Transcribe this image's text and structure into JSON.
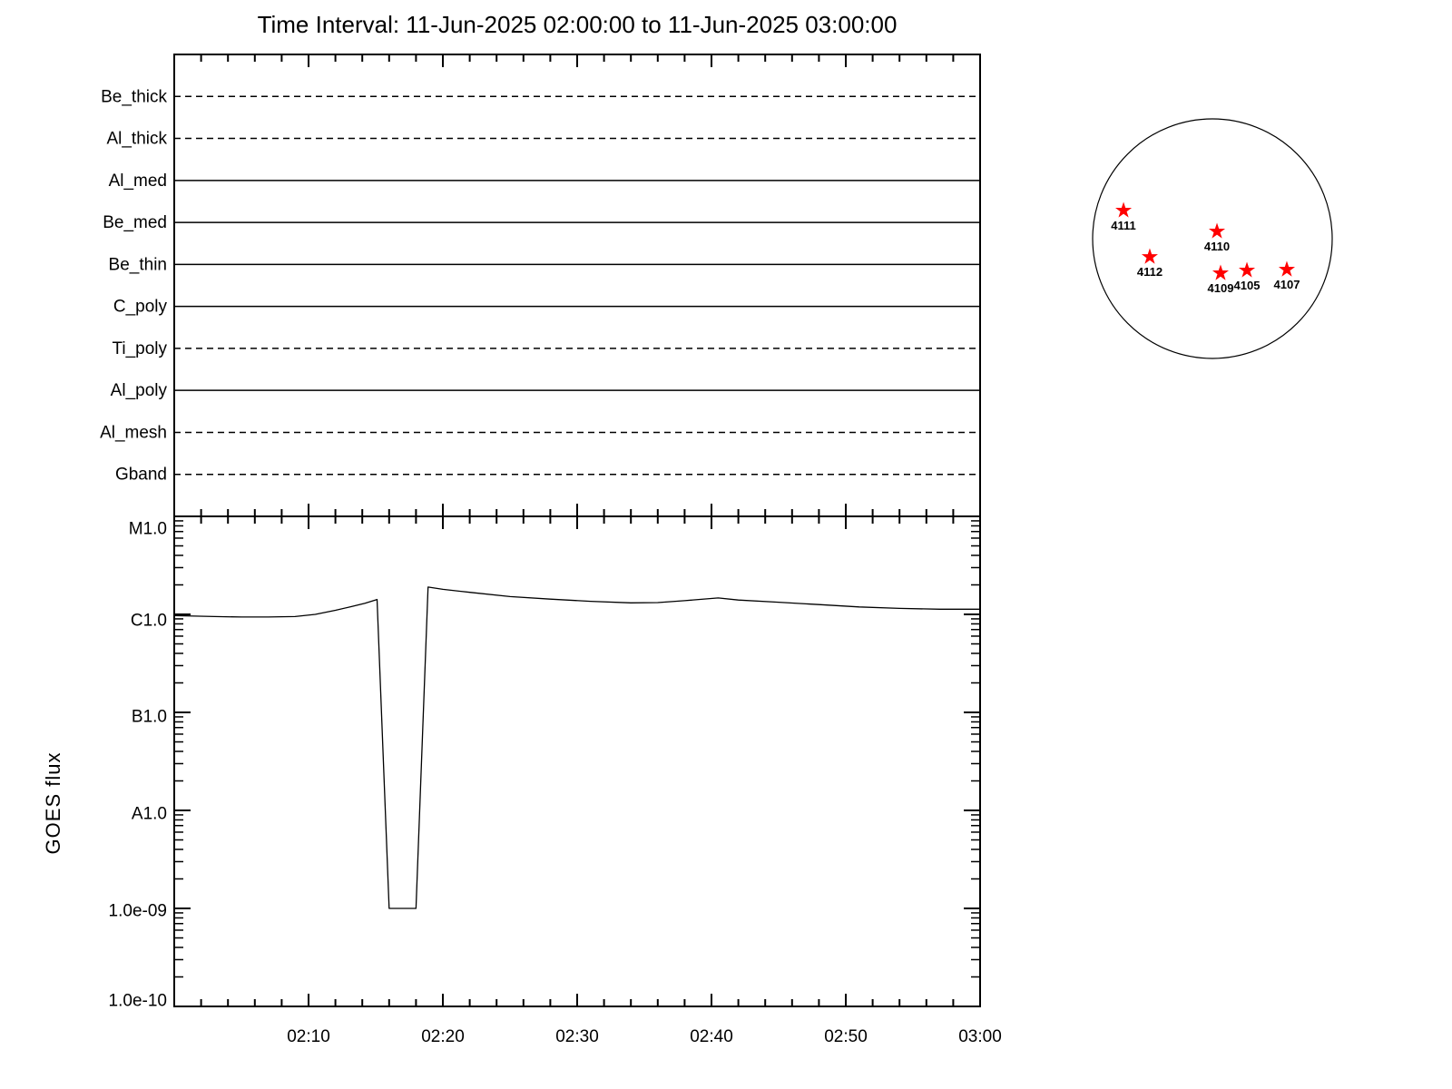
{
  "title": "Time Interval: 11-Jun-2025 02:00:00 to 11-Jun-2025 03:00:00",
  "colors": {
    "foreground": "#000000",
    "background": "#ffffff",
    "active_region_star": "#ff0000"
  },
  "filter_panel": {
    "filters": [
      {
        "label": "Be_thick",
        "line_style": "dashed"
      },
      {
        "label": "Al_thick",
        "line_style": "dashed"
      },
      {
        "label": "Al_med",
        "line_style": "solid"
      },
      {
        "label": "Be_med",
        "line_style": "solid"
      },
      {
        "label": "Be_thin",
        "line_style": "solid"
      },
      {
        "label": "C_poly",
        "line_style": "solid"
      },
      {
        "label": "Ti_poly",
        "line_style": "dashed"
      },
      {
        "label": "Al_poly",
        "line_style": "solid"
      },
      {
        "label": "Al_mesh",
        "line_style": "dashed"
      },
      {
        "label": "Gband",
        "line_style": "dashed"
      }
    ]
  },
  "goes_panel": {
    "ylabel": "GOES flux",
    "ytick_labels": [
      {
        "label": "M1.0",
        "flux": 1e-05
      },
      {
        "label": "C1.0",
        "flux": 1e-06
      },
      {
        "label": "B1.0",
        "flux": 1e-07
      },
      {
        "label": "A1.0",
        "flux": 1e-08
      },
      {
        "label": "1.0e-09",
        "flux": 1e-09
      },
      {
        "label": "1.0e-10",
        "flux": 1e-10
      }
    ],
    "xtick_labels": [
      {
        "label": "02:10",
        "minute": 10
      },
      {
        "label": "02:20",
        "minute": 20
      },
      {
        "label": "02:30",
        "minute": 30
      },
      {
        "label": "02:40",
        "minute": 40
      },
      {
        "label": "02:50",
        "minute": 50
      },
      {
        "label": "03:00",
        "minute": 60
      }
    ]
  },
  "solar_map": {
    "active_regions": [
      {
        "label": "4111",
        "dx": -0.742,
        "dy": -0.235
      },
      {
        "label": "4110",
        "dx": 0.038,
        "dy": -0.061
      },
      {
        "label": "4112",
        "dx": -0.523,
        "dy": 0.152
      },
      {
        "label": "4109",
        "dx": 0.068,
        "dy": 0.288
      },
      {
        "label": "4105",
        "dx": 0.288,
        "dy": 0.265
      },
      {
        "label": "4107",
        "dx": 0.621,
        "dy": 0.258
      }
    ]
  },
  "chart_data": {
    "type": "line",
    "title": "Time Interval: 11-Jun-2025 02:00:00 to 11-Jun-2025 03:00:00",
    "xlabel": "",
    "ylabel": "GOES flux",
    "x_axis": {
      "start_time": "02:00",
      "end_time": "03:00",
      "major_tick_minutes": 10,
      "minor_tick_minutes": 2
    },
    "y_axis": {
      "scale": "log",
      "min": 1e-10,
      "max": 1e-05,
      "decade_labels": [
        "M1.0",
        "C1.0",
        "B1.0",
        "A1.0",
        "1.0e-09",
        "1.0e-10"
      ]
    },
    "grid": false,
    "legend": "none",
    "series": [
      {
        "name": "GOES flux",
        "x_minutes_after_0200": [
          0,
          1.5,
          3,
          5,
          7,
          9,
          10.5,
          12,
          13.2,
          14.2,
          15.1,
          16.0,
          17.0,
          18.0,
          18.9,
          20,
          22,
          25,
          28,
          31,
          34,
          36,
          38,
          40.5,
          42,
          45,
          48,
          51,
          54,
          57,
          60
        ],
        "flux_w_m2": [
          9.7e-07,
          9.6e-07,
          9.5e-07,
          9.4e-07,
          9.4e-07,
          9.5e-07,
          1e-06,
          1.1e-06,
          1.2e-06,
          1.3e-06,
          1.42e-06,
          1e-09,
          1e-09,
          1e-09,
          1.9e-06,
          1.8e-06,
          1.68e-06,
          1.52e-06,
          1.43e-06,
          1.36e-06,
          1.31e-06,
          1.32e-06,
          1.38e-06,
          1.47e-06,
          1.4e-06,
          1.33e-06,
          1.26e-06,
          1.19e-06,
          1.15e-06,
          1.13e-06,
          1.13e-06
        ]
      }
    ],
    "annotations": {
      "data_gap": {
        "from_minute": 16,
        "to_minute": 18,
        "clamped_flux": 1e-09
      }
    }
  }
}
